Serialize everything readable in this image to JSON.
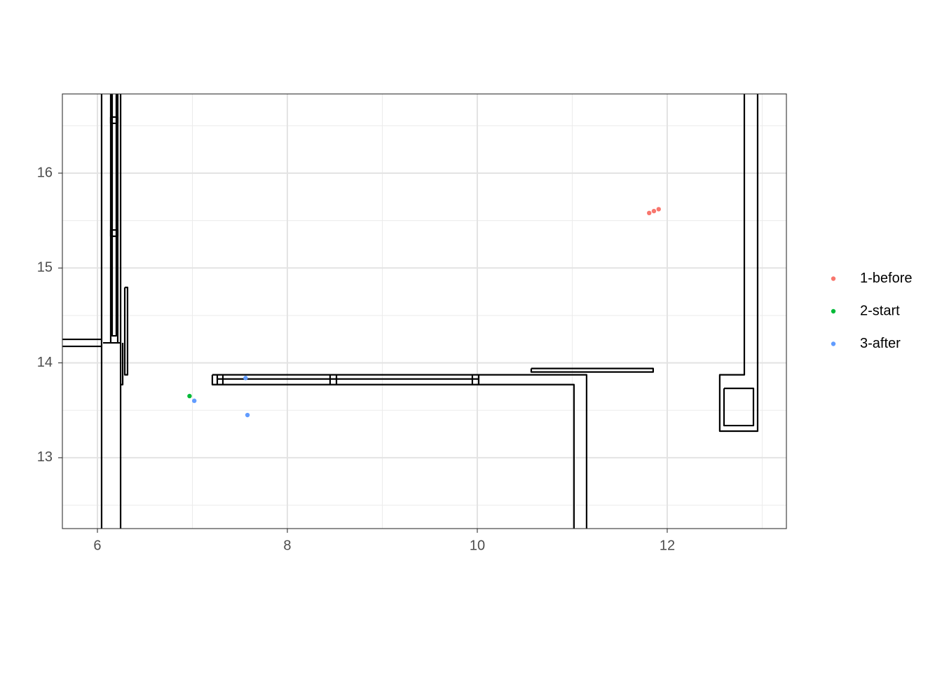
{
  "chart_data": {
    "type": "scatter",
    "xlim": [
      5.631,
      13.255
    ],
    "ylim": [
      12.253,
      16.835
    ],
    "xticks": [
      6,
      8,
      10,
      12
    ],
    "yticks": [
      13,
      14,
      15,
      16
    ],
    "x_minor_breaks": [
      7,
      9,
      11,
      13
    ],
    "y_minor_breaks": [
      12.5,
      13.5,
      14.5,
      15.5,
      16.5
    ],
    "grid": true,
    "legend": "right",
    "series": [
      {
        "name": "1-before",
        "color": "#F8766D",
        "x": [
          11.81,
          11.86,
          11.91
        ],
        "y": [
          15.58,
          15.6,
          15.62
        ]
      },
      {
        "name": "2-start",
        "color": "#00BA38",
        "x": [
          6.97
        ],
        "y": [
          13.65
        ]
      },
      {
        "name": "3-after",
        "color": "#619CFF",
        "x": [
          7.02,
          7.56,
          7.58
        ],
        "y": [
          13.6,
          13.84,
          13.45
        ]
      }
    ],
    "walls": [
      {
        "x": [
          6.044,
          6.044
        ],
        "y": [
          16.835,
          12.253
        ]
      },
      {
        "x": [
          5.631,
          6.044
        ],
        "y": [
          14.248,
          14.248
        ]
      },
      {
        "x": [
          5.631,
          6.044
        ],
        "y": [
          14.174,
          14.174
        ]
      },
      {
        "x": [
          6.059,
          6.244
        ],
        "y": [
          14.211,
          14.211
        ]
      },
      {
        "x": [
          6.14,
          6.14
        ],
        "y": [
          16.835,
          14.211
        ]
      },
      {
        "x": [
          6.214,
          6.214
        ],
        "y": [
          16.835,
          14.211
        ]
      },
      {
        "x": [
          6.155,
          6.155,
          6.199,
          6.199
        ],
        "y": [
          16.835,
          14.285,
          14.285,
          16.835
        ]
      },
      {
        "x": [
          6.244,
          6.244
        ],
        "y": [
          16.835,
          12.253
        ]
      },
      {
        "x": [
          6.244,
          6.266,
          6.266
        ],
        "y": [
          13.771,
          13.771,
          14.211
        ]
      },
      {
        "x": [
          6.288,
          6.317,
          6.317,
          6.288,
          6.288
        ],
        "y": [
          14.795,
          14.795,
          13.874,
          13.874,
          14.795
        ]
      },
      {
        "x": [
          6.14,
          6.214,
          6.214,
          6.14,
          6.14
        ],
        "y": [
          16.591,
          16.591,
          16.525,
          16.525,
          16.591
        ]
      },
      {
        "x": [
          6.14,
          6.214,
          6.214,
          6.14,
          6.14
        ],
        "y": [
          15.401,
          15.401,
          15.335,
          15.335,
          15.401
        ]
      },
      {
        "x": [
          7.21,
          11.151,
          11.151
        ],
        "y": [
          13.874,
          13.874,
          12.253
        ]
      },
      {
        "x": [
          7.21,
          7.21,
          11.018,
          11.018
        ],
        "y": [
          13.874,
          13.771,
          13.771,
          12.253
        ]
      },
      {
        "x": [
          7.262,
          10.015
        ],
        "y": [
          13.83,
          13.83
        ]
      },
      {
        "x": [
          7.262,
          7.262
        ],
        "y": [
          13.874,
          13.771
        ]
      },
      {
        "x": [
          7.321,
          7.321
        ],
        "y": [
          13.874,
          13.771
        ]
      },
      {
        "x": [
          8.45,
          8.45
        ],
        "y": [
          13.874,
          13.771
        ]
      },
      {
        "x": [
          8.517,
          8.517
        ],
        "y": [
          13.874,
          13.771
        ]
      },
      {
        "x": [
          9.948,
          9.948
        ],
        "y": [
          13.874,
          13.771
        ]
      },
      {
        "x": [
          10.015,
          10.015
        ],
        "y": [
          13.874,
          13.771
        ]
      },
      {
        "x": [
          10.568,
          11.852,
          11.852,
          10.568,
          10.568
        ],
        "y": [
          13.941,
          13.941,
          13.904,
          13.904,
          13.941
        ]
      },
      {
        "x": [
          12.812,
          12.812,
          12.553,
          12.553,
          12.952,
          12.952
        ],
        "y": [
          16.835,
          13.874,
          13.874,
          13.28,
          13.28,
          16.835
        ]
      },
      {
        "x": [
          12.598,
          12.908,
          12.908,
          12.598,
          12.598
        ],
        "y": [
          13.731,
          13.731,
          13.339,
          13.339,
          13.731
        ]
      }
    ]
  }
}
